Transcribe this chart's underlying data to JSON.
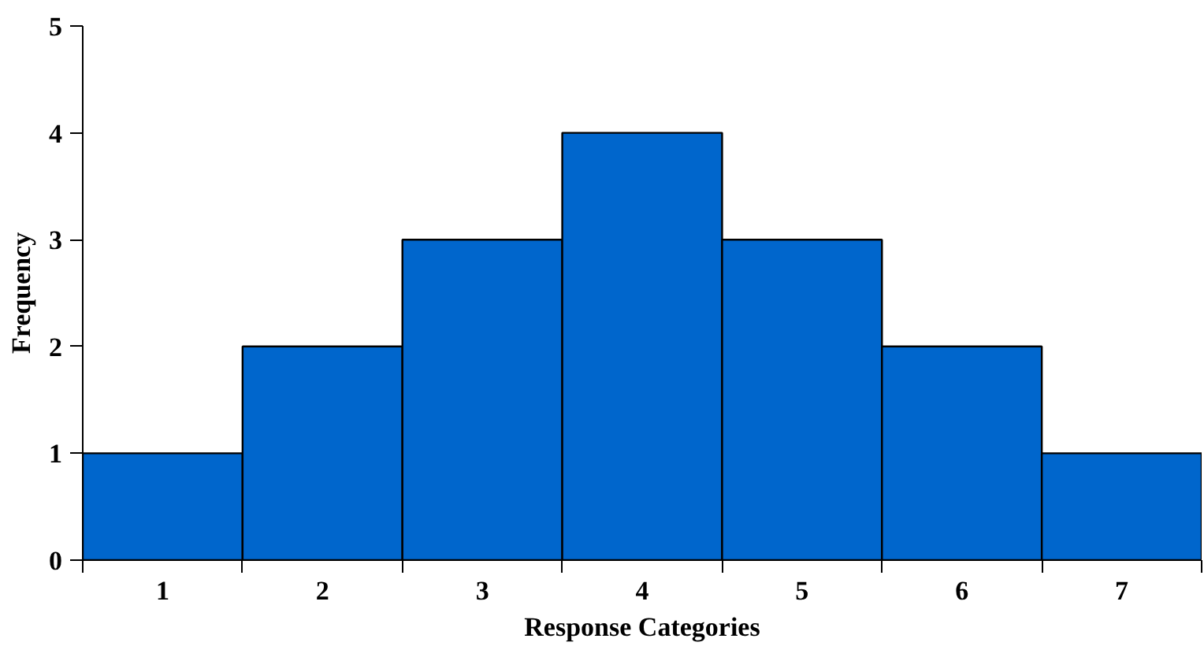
{
  "chart_data": {
    "type": "bar",
    "xlabel": "Response Categories",
    "ylabel": "Frequency",
    "categories": [
      "1",
      "2",
      "3",
      "4",
      "5",
      "6",
      "7"
    ],
    "values": [
      1,
      2,
      3,
      4,
      3,
      2,
      1
    ],
    "color": "#0066cc",
    "ylim": [
      0,
      5
    ],
    "yticks": [
      0,
      1,
      2,
      3,
      4,
      5
    ],
    "grid": false
  }
}
